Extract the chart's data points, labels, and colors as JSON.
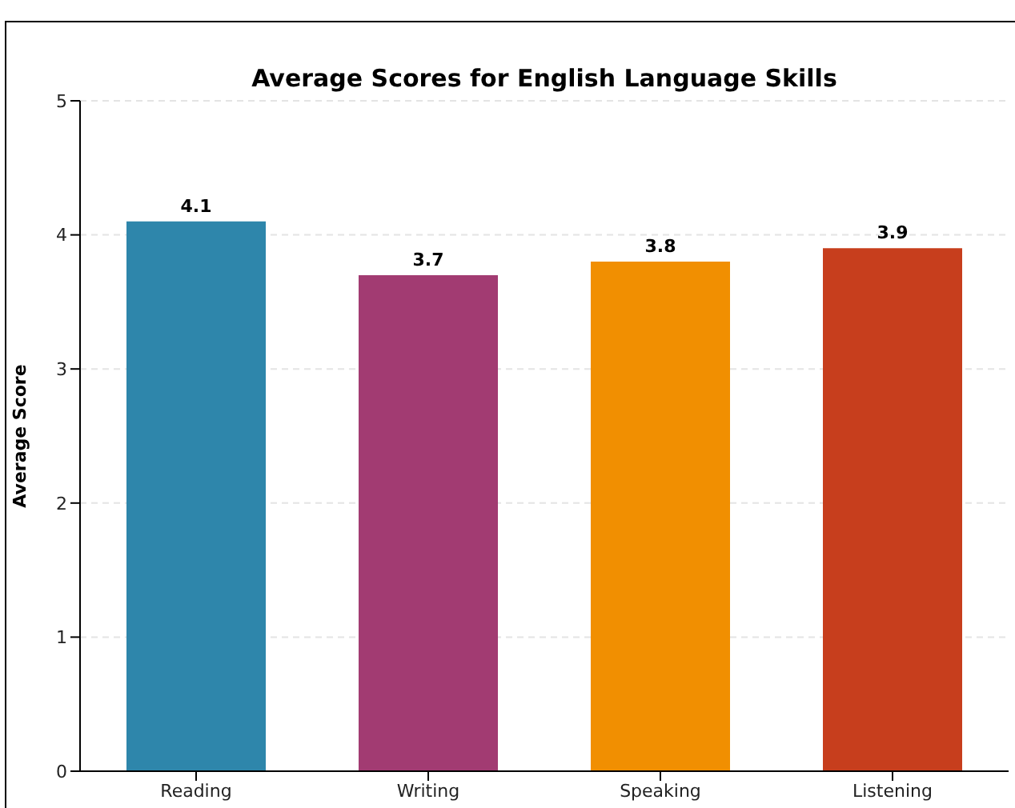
{
  "chart_data": {
    "type": "bar",
    "title": "Average Scores for English Language Skills",
    "ylabel": "Average Score",
    "categories": [
      "Reading",
      "Writing",
      "Speaking",
      "Listening"
    ],
    "values": [
      4.1,
      3.7,
      3.8,
      3.9
    ],
    "colors": [
      "#2e86ab",
      "#a23b72",
      "#f18f01",
      "#c73e1d"
    ],
    "ylim": [
      0,
      5
    ],
    "yticks": [
      0,
      1,
      2,
      3,
      4,
      5
    ],
    "grid": "y",
    "data_labels": true
  }
}
